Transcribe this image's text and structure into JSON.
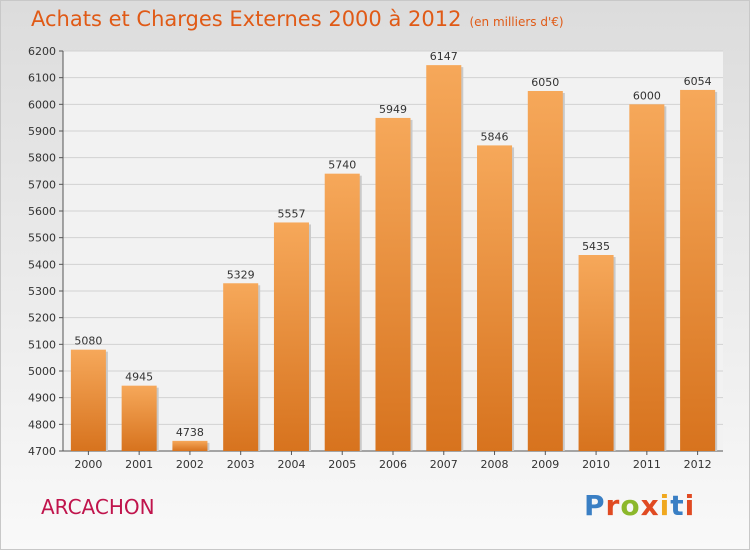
{
  "title": "Achats et Charges Externes 2000 à 2012",
  "subtitle": "(en milliers d'€)",
  "city": "ARCACHON",
  "brand": "Proxiti",
  "colors": {
    "title": "#e05a16",
    "city": "#c0144c",
    "bar_light": "#f6a85a",
    "bar_dark": "#d7731e",
    "brand_letters": [
      "#3a7fc4",
      "#e04a22",
      "#8cb82b",
      "#e04a22",
      "#f0a81e",
      "#3a7fc4",
      "#e04a22"
    ]
  },
  "chart_data": {
    "type": "bar",
    "categories": [
      "2000",
      "2001",
      "2002",
      "2003",
      "2004",
      "2005",
      "2006",
      "2007",
      "2008",
      "2009",
      "2010",
      "2011",
      "2012"
    ],
    "values": [
      5080,
      4945,
      4738,
      5329,
      5557,
      5740,
      5949,
      6147,
      5846,
      6050,
      5435,
      6000,
      6054
    ],
    "ylim": [
      4700,
      6200
    ],
    "yticks": [
      4700,
      4800,
      4900,
      5000,
      5100,
      5200,
      5300,
      5400,
      5500,
      5600,
      5700,
      5800,
      5900,
      6000,
      6100,
      6200
    ],
    "grid": true
  }
}
